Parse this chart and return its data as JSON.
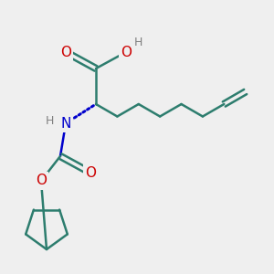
{
  "bg_color": "#efefef",
  "bond_color": "#2d7d6e",
  "N_color": "#0000cc",
  "O_color": "#cc0000",
  "H_color": "#808080",
  "line_width": 1.8,
  "font_size_atom": 11,
  "font_size_H": 9,
  "figsize": [
    3.0,
    3.0
  ],
  "dpi": 100,
  "xlim": [
    0,
    10
  ],
  "ylim": [
    0,
    10
  ]
}
